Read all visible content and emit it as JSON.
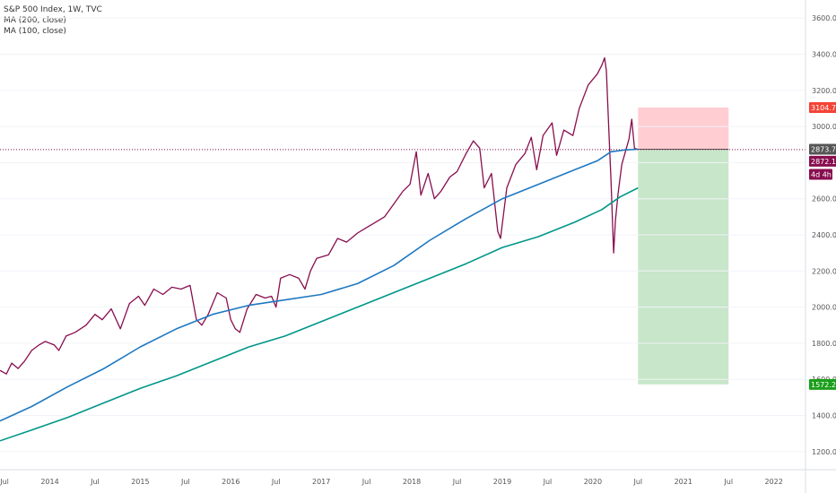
{
  "legend": {
    "title": "S&P 500 Index, 1W, TVC",
    "ma200": "MA (200, close)",
    "ma100": "MA (100, close)"
  },
  "colors": {
    "price": "#880e4f",
    "ma100": "#1e78c2",
    "ma200": "#009688",
    "target_zone": "#c8e6c9",
    "stop_zone": "#ffcdd2",
    "price_tag": "#880e4f",
    "countdown_tag": "#880e4f",
    "stop_tag": "#f44336",
    "target_tag": "#1b9e1b",
    "level_tag": "#555555",
    "level_line": "#880e4f"
  },
  "chart_data": {
    "type": "line",
    "title": "S&P 500 Index, 1W, TVC",
    "xlabel": "",
    "ylabel": "",
    "ylim": [
      1100,
      3700
    ],
    "xlim": [
      2013.45,
      2022.35
    ],
    "grid": false,
    "legend_position": "top-left",
    "y_ticks": [
      "1200.0",
      "1400.0",
      "1600.0",
      "1800.0",
      "2000.0",
      "2200.0",
      "2400.0",
      "2600.0",
      "2800.0",
      "3000.0",
      "3200.0",
      "3400.0",
      "3600.0"
    ],
    "x_ticks": [
      {
        "label": "Jul",
        "t": 2013.5
      },
      {
        "label": "2014",
        "t": 2014.0
      },
      {
        "label": "Jul",
        "t": 2014.5
      },
      {
        "label": "2015",
        "t": 2015.0
      },
      {
        "label": "Jul",
        "t": 2015.5
      },
      {
        "label": "2016",
        "t": 2016.0
      },
      {
        "label": "Jul",
        "t": 2016.5
      },
      {
        "label": "2017",
        "t": 2017.0
      },
      {
        "label": "Jul",
        "t": 2017.5
      },
      {
        "label": "2018",
        "t": 2018.0
      },
      {
        "label": "Jul",
        "t": 2018.5
      },
      {
        "label": "2019",
        "t": 2019.0
      },
      {
        "label": "Jul",
        "t": 2019.5
      },
      {
        "label": "2020",
        "t": 2020.0
      },
      {
        "label": "Jul",
        "t": 2020.5
      },
      {
        "label": "2021",
        "t": 2021.0
      },
      {
        "label": "Jul",
        "t": 2021.5
      },
      {
        "label": "2022",
        "t": 2022.0
      }
    ],
    "series": [
      {
        "name": "S&P 500 Index",
        "role": "price",
        "points": [
          [
            2013.45,
            1650
          ],
          [
            2013.52,
            1630
          ],
          [
            2013.58,
            1690
          ],
          [
            2013.65,
            1660
          ],
          [
            2013.72,
            1700
          ],
          [
            2013.8,
            1760
          ],
          [
            2013.88,
            1790
          ],
          [
            2013.95,
            1810
          ],
          [
            2014.05,
            1790
          ],
          [
            2014.1,
            1760
          ],
          [
            2014.18,
            1840
          ],
          [
            2014.28,
            1860
          ],
          [
            2014.4,
            1900
          ],
          [
            2014.5,
            1960
          ],
          [
            2014.58,
            1930
          ],
          [
            2014.68,
            1990
          ],
          [
            2014.78,
            1880
          ],
          [
            2014.88,
            2020
          ],
          [
            2014.98,
            2060
          ],
          [
            2015.05,
            2010
          ],
          [
            2015.15,
            2100
          ],
          [
            2015.25,
            2070
          ],
          [
            2015.35,
            2110
          ],
          [
            2015.45,
            2100
          ],
          [
            2015.55,
            2120
          ],
          [
            2015.62,
            1930
          ],
          [
            2015.68,
            1900
          ],
          [
            2015.75,
            1960
          ],
          [
            2015.85,
            2080
          ],
          [
            2015.95,
            2050
          ],
          [
            2016.0,
            1930
          ],
          [
            2016.05,
            1880
          ],
          [
            2016.1,
            1860
          ],
          [
            2016.18,
            1990
          ],
          [
            2016.28,
            2070
          ],
          [
            2016.38,
            2050
          ],
          [
            2016.45,
            2060
          ],
          [
            2016.5,
            2000
          ],
          [
            2016.55,
            2160
          ],
          [
            2016.65,
            2180
          ],
          [
            2016.75,
            2160
          ],
          [
            2016.82,
            2100
          ],
          [
            2016.88,
            2200
          ],
          [
            2016.95,
            2270
          ],
          [
            2017.08,
            2290
          ],
          [
            2017.18,
            2380
          ],
          [
            2017.28,
            2360
          ],
          [
            2017.4,
            2410
          ],
          [
            2017.5,
            2440
          ],
          [
            2017.6,
            2470
          ],
          [
            2017.7,
            2500
          ],
          [
            2017.8,
            2570
          ],
          [
            2017.9,
            2640
          ],
          [
            2017.98,
            2680
          ],
          [
            2018.05,
            2860
          ],
          [
            2018.1,
            2620
          ],
          [
            2018.18,
            2740
          ],
          [
            2018.25,
            2600
          ],
          [
            2018.32,
            2640
          ],
          [
            2018.42,
            2720
          ],
          [
            2018.5,
            2750
          ],
          [
            2018.6,
            2850
          ],
          [
            2018.68,
            2920
          ],
          [
            2018.75,
            2880
          ],
          [
            2018.8,
            2660
          ],
          [
            2018.88,
            2740
          ],
          [
            2018.95,
            2420
          ],
          [
            2018.98,
            2380
          ],
          [
            2019.05,
            2660
          ],
          [
            2019.15,
            2790
          ],
          [
            2019.25,
            2850
          ],
          [
            2019.32,
            2940
          ],
          [
            2019.38,
            2760
          ],
          [
            2019.45,
            2950
          ],
          [
            2019.55,
            3020
          ],
          [
            2019.6,
            2840
          ],
          [
            2019.68,
            2980
          ],
          [
            2019.78,
            2950
          ],
          [
            2019.85,
            3100
          ],
          [
            2019.95,
            3230
          ],
          [
            2020.05,
            3290
          ],
          [
            2020.1,
            3340
          ],
          [
            2020.13,
            3380
          ],
          [
            2020.15,
            3310
          ],
          [
            2020.18,
            2950
          ],
          [
            2020.2,
            2710
          ],
          [
            2020.23,
            2300
          ],
          [
            2020.25,
            2480
          ],
          [
            2020.28,
            2630
          ],
          [
            2020.32,
            2790
          ],
          [
            2020.36,
            2860
          ],
          [
            2020.4,
            2930
          ],
          [
            2020.43,
            3040
          ],
          [
            2020.46,
            2880
          ],
          [
            2020.5,
            2872.1
          ]
        ]
      },
      {
        "name": "MA (100, close)",
        "role": "ma100",
        "points": [
          [
            2013.45,
            1370
          ],
          [
            2013.8,
            1450
          ],
          [
            2014.2,
            1560
          ],
          [
            2014.6,
            1660
          ],
          [
            2015.0,
            1780
          ],
          [
            2015.4,
            1880
          ],
          [
            2015.8,
            1960
          ],
          [
            2016.2,
            2010
          ],
          [
            2016.6,
            2040
          ],
          [
            2017.0,
            2070
          ],
          [
            2017.4,
            2130
          ],
          [
            2017.8,
            2230
          ],
          [
            2018.2,
            2370
          ],
          [
            2018.6,
            2490
          ],
          [
            2019.0,
            2600
          ],
          [
            2019.4,
            2680
          ],
          [
            2019.8,
            2760
          ],
          [
            2020.05,
            2810
          ],
          [
            2020.2,
            2860
          ],
          [
            2020.35,
            2870
          ],
          [
            2020.5,
            2873.7
          ]
        ]
      },
      {
        "name": "MA (200, close)",
        "role": "ma200",
        "points": [
          [
            2013.45,
            1260
          ],
          [
            2013.8,
            1320
          ],
          [
            2014.2,
            1390
          ],
          [
            2014.6,
            1470
          ],
          [
            2015.0,
            1550
          ],
          [
            2015.4,
            1620
          ],
          [
            2015.8,
            1700
          ],
          [
            2016.2,
            1780
          ],
          [
            2016.6,
            1840
          ],
          [
            2017.0,
            1920
          ],
          [
            2017.4,
            2000
          ],
          [
            2017.8,
            2080
          ],
          [
            2018.2,
            2160
          ],
          [
            2018.6,
            2240
          ],
          [
            2019.0,
            2330
          ],
          [
            2019.4,
            2390
          ],
          [
            2019.8,
            2470
          ],
          [
            2020.1,
            2540
          ],
          [
            2020.3,
            2610
          ],
          [
            2020.5,
            2660
          ]
        ]
      }
    ],
    "position": {
      "start": 2020.5,
      "end": 2021.5,
      "entry": 2873.7,
      "stop": 3104.7,
      "target": 1572.2
    },
    "axis_tags": [
      {
        "label": "3104.7",
        "value": 3104.7,
        "role": "stop"
      },
      {
        "label": "2873.7",
        "value": 2873.7,
        "role": "level"
      },
      {
        "label": "2872.1",
        "value": 2872.1,
        "role": "price"
      },
      {
        "label": "4d 4h",
        "value": 2790,
        "role": "countdown"
      },
      {
        "label": "1572.2",
        "value": 1572.2,
        "role": "target"
      }
    ]
  }
}
